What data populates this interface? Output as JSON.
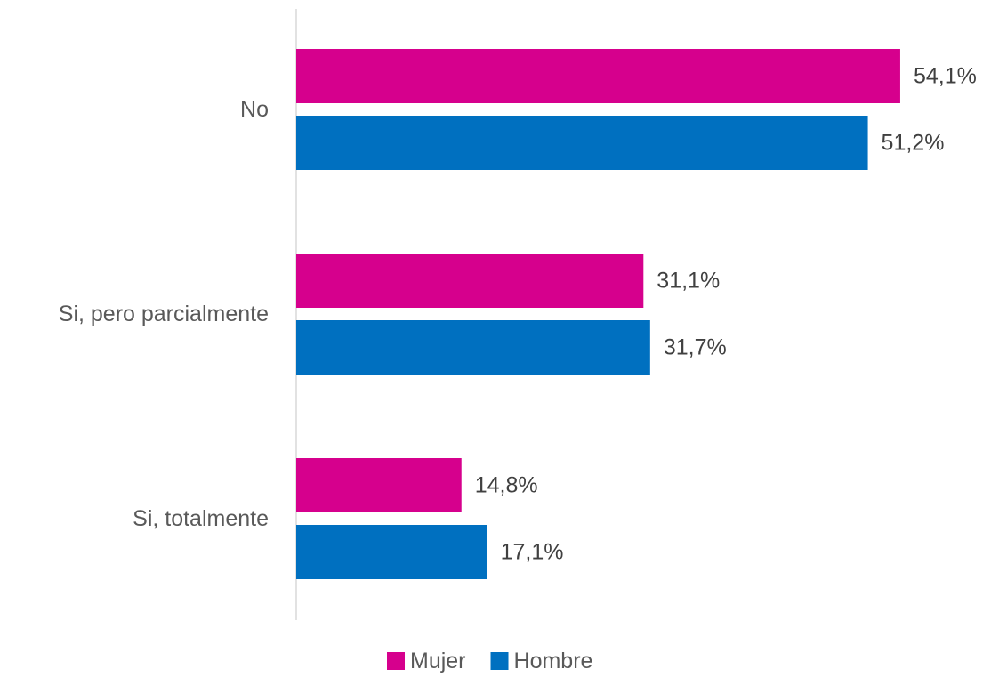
{
  "chart_data": {
    "type": "bar",
    "orientation": "horizontal",
    "categories": [
      "No",
      "Si, pero parcialmente",
      "Si, totalmente"
    ],
    "series": [
      {
        "name": "Mujer",
        "color": "#D6008D",
        "values": [
          54.1,
          31.1,
          14.8
        ],
        "labels": [
          "54,1%",
          "31,1%",
          "14,8%"
        ]
      },
      {
        "name": "Hombre",
        "color": "#0070C0",
        "values": [
          51.2,
          31.7,
          17.1
        ],
        "labels": [
          "51,2%",
          "31,7%",
          "17,1%"
        ]
      }
    ],
    "xlim": [
      0,
      60
    ],
    "grid": false,
    "legend_position": "bottom",
    "axis_color": "#D9D9D9"
  }
}
